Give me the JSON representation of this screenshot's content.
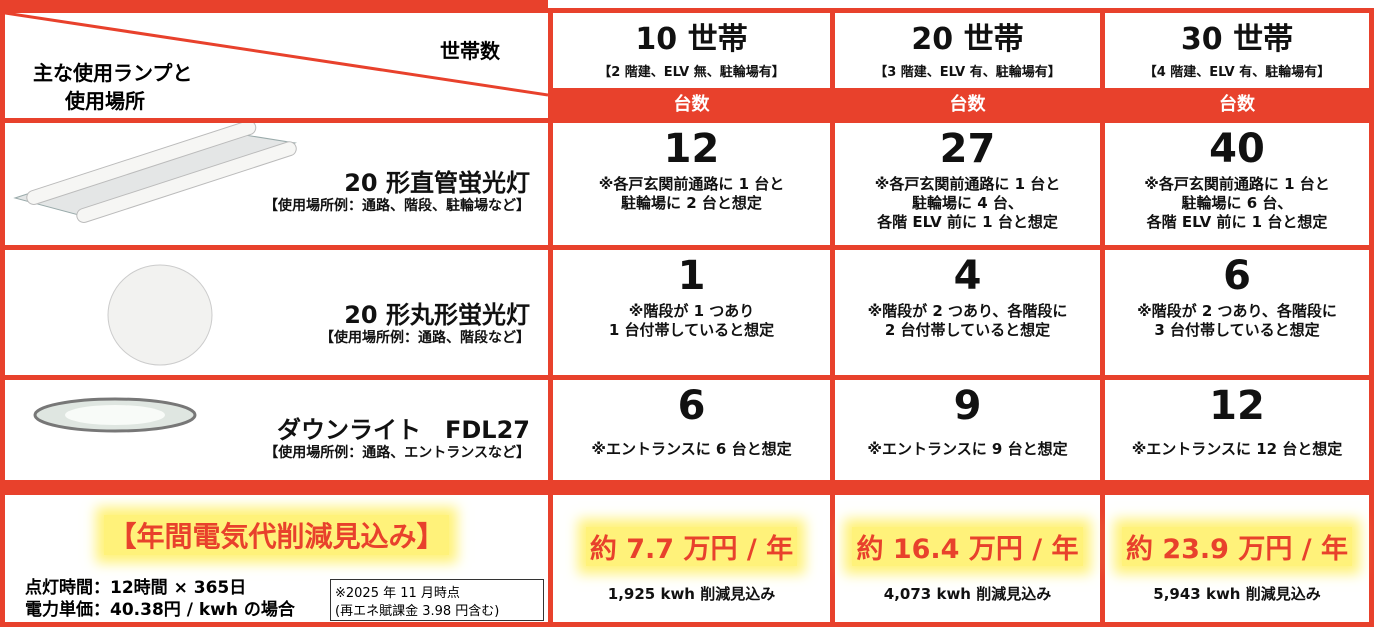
{
  "header": {
    "corner_top": "世帯数",
    "corner_bottom": [
      "主な使用ランプと",
      "使用場所"
    ],
    "columns": [
      {
        "households": "10 世帯",
        "note": "【2 階建、ELV 無、駐輪場有】",
        "unit_label": "台数"
      },
      {
        "households": "20 世帯",
        "note": "【3 階建、ELV 有、駐輪場有】",
        "unit_label": "台数"
      },
      {
        "households": "30 世帯",
        "note": "【4 階建、ELV 有、駐輪場有】",
        "unit_label": "台数"
      }
    ]
  },
  "rows": [
    {
      "lamp": "20 形直管蛍光灯",
      "usage": "【使用場所例：通路、階段、駐輪場など】",
      "cells": [
        {
          "count": 12,
          "note": [
            "※各戸玄関前通路に 1 台と",
            "駐輪場に 2 台と想定"
          ]
        },
        {
          "count": 27,
          "note": [
            "※各戸玄関前通路に 1 台と",
            "駐輪場に 4 台、",
            "各階 ELV 前に 1 台と想定"
          ]
        },
        {
          "count": 40,
          "note": [
            "※各戸玄関前通路に 1 台と",
            "駐輪場に 6 台、",
            "各階 ELV 前に 1 台と想定"
          ]
        }
      ]
    },
    {
      "lamp": "20 形丸形蛍光灯",
      "usage": "【使用場所例：通路、階段など】",
      "cells": [
        {
          "count": 1,
          "note": [
            "※階段が 1 つあり",
            "1 台付帯していると想定"
          ]
        },
        {
          "count": 4,
          "note": [
            "※階段が 2 つあり、各階段に",
            "2 台付帯していると想定"
          ]
        },
        {
          "count": 6,
          "note": [
            "※階段が 2 つあり、各階段に",
            "3 台付帯していると想定"
          ]
        }
      ]
    },
    {
      "lamp": "ダウンライト　FDL27",
      "usage": "【使用場所例：通路、エントランスなど】",
      "cells": [
        {
          "count": 6,
          "note": [
            "※エントランスに 6 台と想定"
          ]
        },
        {
          "count": 9,
          "note": [
            "※エントランスに 9 台と想定"
          ]
        },
        {
          "count": 12,
          "note": [
            "※エントランスに 12 台と想定"
          ]
        }
      ]
    }
  ],
  "summary": {
    "title": "【年間電気代削減見込み】",
    "conditions": [
      "点灯時間：12時間 × 365日",
      "電力単価：40.38円 / kwh の場合"
    ],
    "footnote": [
      "※2025 年 11 月時点",
      "(再エネ賦課金 3.98 円含む)"
    ],
    "cells": [
      {
        "saving": "約 7.7 万円 / 年",
        "kwh": "1,925 kwh 削減見込み"
      },
      {
        "saving": "約 16.4 万円 / 年",
        "kwh": "4,073 kwh 削減見込み"
      },
      {
        "saving": "約 23.9 万円 / 年",
        "kwh": "5,943 kwh 削減見込み"
      }
    ]
  }
}
